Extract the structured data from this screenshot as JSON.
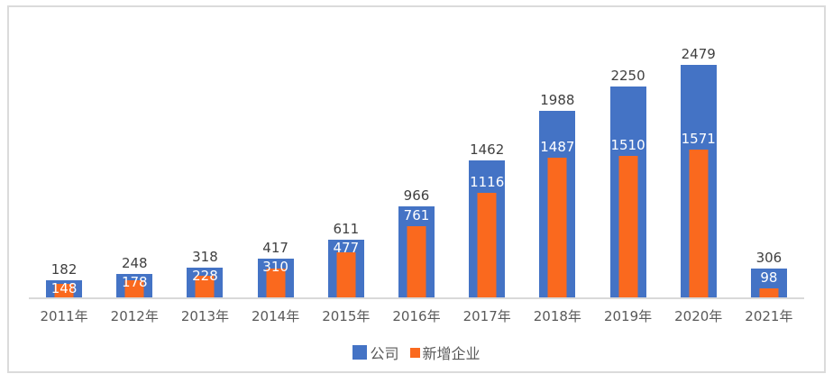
{
  "chart_data": {
    "type": "bar",
    "subtype": "overlapped-columns",
    "title": "",
    "xlabel": "",
    "ylabel": "",
    "categories": [
      "2011年",
      "2012年",
      "2013年",
      "2014年",
      "2015年",
      "2016年",
      "2017年",
      "2018年",
      "2019年",
      "2020年",
      "2021年"
    ],
    "series": [
      {
        "name": "公司",
        "color": "#4473C5",
        "values": [
          182,
          248,
          318,
          417,
          611,
          966,
          1462,
          1988,
          2250,
          2479,
          306
        ],
        "label_color": "#404040",
        "label_position": "outside-top"
      },
      {
        "name": "新增企业",
        "color": "#FA691E",
        "values": [
          148,
          178,
          228,
          310,
          477,
          761,
          1116,
          1487,
          1510,
          1571,
          98
        ],
        "label_color": "#FFFFFF",
        "label_position": "above-bar-inside-primary"
      }
    ],
    "ylim": [
      0,
      2479
    ],
    "grid": false,
    "value_labels": true,
    "legend_position": "bottom-center"
  },
  "legend": {
    "items": [
      {
        "label": "公司",
        "color": "#4473C5"
      },
      {
        "label": "新增企业",
        "color": "#FA691E"
      }
    ]
  },
  "colors": {
    "background": "#FFFFFF",
    "frame_border": "#DBDBDB",
    "axis_line": "#D9D9D9",
    "axis_label": "#595959",
    "primary_value_label": "#404040",
    "secondary_value_label": "#FFFFFF"
  }
}
